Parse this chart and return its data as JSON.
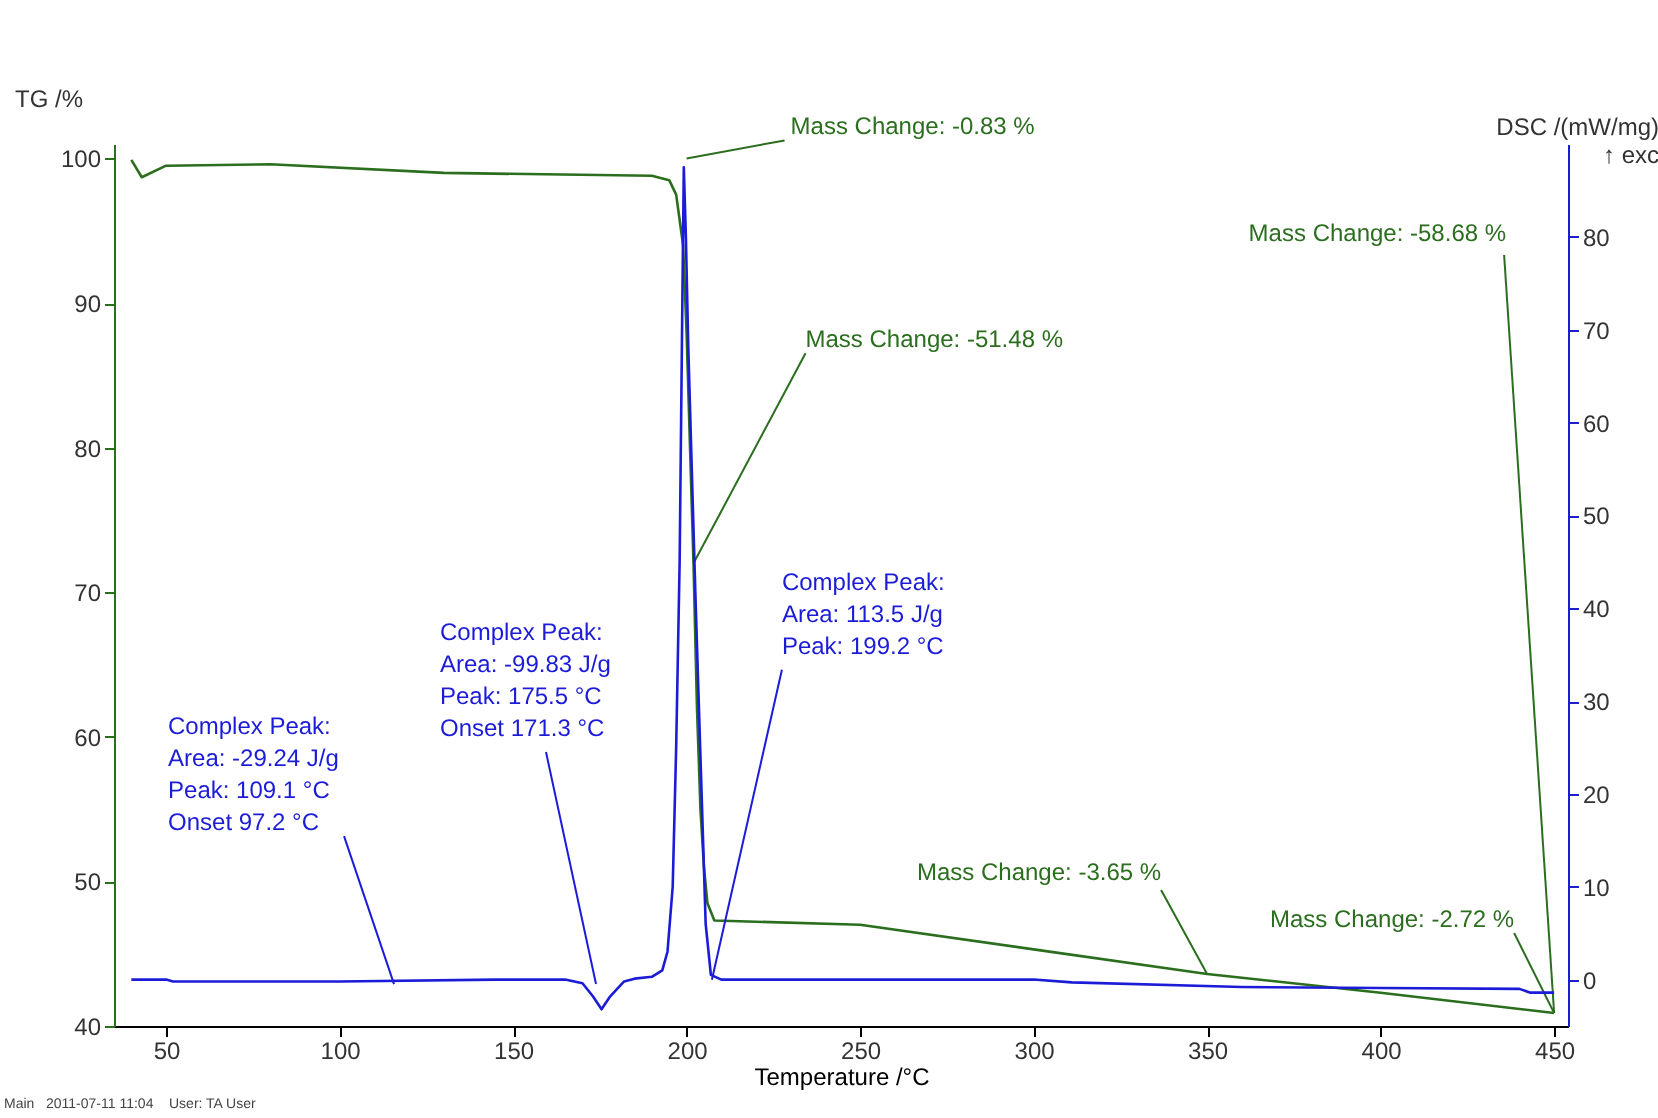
{
  "chart_data": {
    "type": "line",
    "xlabel": "Temperature /°C",
    "ylabel": "TG /%",
    "y2label": "DSC /(mW/mg)\n↑ exc",
    "xlim": [
      35,
      454
    ],
    "xticks": [
      50,
      100,
      150,
      200,
      250,
      300,
      350,
      400,
      450
    ],
    "ylim": [
      40,
      101
    ],
    "yticks": [
      40,
      50,
      60,
      70,
      80,
      90,
      100
    ],
    "y2lim": [
      -5,
      90
    ],
    "y2ticks": [
      0,
      10,
      20,
      30,
      40,
      50,
      60,
      70,
      80
    ],
    "grid": false,
    "marker": "none",
    "line_style": "solid",
    "series": [
      {
        "color": "#2a6e1e",
        "x": [
          40,
          43,
          50,
          80,
          130,
          190,
          195,
          197,
          199,
          200,
          201,
          202,
          203,
          204,
          205,
          206,
          208,
          250,
          300,
          350,
          400,
          450
        ],
        "values": [
          99.9,
          98.7,
          99.5,
          99.6,
          99.0,
          98.8,
          98.5,
          97.5,
          94,
          88,
          80,
          72,
          62,
          55,
          51,
          48.5,
          47.3,
          47.0,
          45.3,
          43.6,
          42.3,
          40.9
        ]
      },
      {
        "color": "#1c1cd8",
        "axis": "y2",
        "x": [
          40,
          50,
          52,
          100,
          145,
          165,
          170,
          173,
          175.5,
          178,
          182,
          185,
          190,
          193,
          194.5,
          196,
          197,
          198,
          198.7,
          199.2,
          199.8,
          200.5,
          201.5,
          202.5,
          203.5,
          204.5,
          205.5,
          207,
          210,
          300,
          311,
          360,
          400,
          440,
          443,
          450
        ],
        "values": [
          0,
          0,
          -0.2,
          -0.2,
          0,
          0,
          -0.4,
          -1.8,
          -3.2,
          -1.8,
          -0.2,
          0.1,
          0.3,
          1,
          3,
          10,
          25,
          45,
          70,
          87.5,
          80,
          68,
          55,
          42,
          30,
          18,
          6,
          0.5,
          0,
          0,
          -0.3,
          -0.8,
          -0.9,
          -1.0,
          -1.4,
          -1.4
        ]
      }
    ],
    "annotations": [
      {
        "text": "Mass Change: -0.83 %",
        "x": 200,
        "y": 100
      },
      {
        "text": "Mass Change: -51.48 %",
        "x": 202,
        "y": 72
      },
      {
        "text": "Mass Change: -58.68 %",
        "x": 450,
        "y": 40.9
      },
      {
        "text": "Mass Change: -3.65 %",
        "x": 350,
        "y": 43.6
      },
      {
        "text": "Mass Change: -2.72 %",
        "x": 450,
        "y": 40.9
      },
      {
        "text": "Complex Peak:\nArea:     -29.24 J/g\nPeak:   109.1 °C\nOnset    97.2 °C",
        "x": 115.7,
        "y": 42.9
      },
      {
        "text": "Complex Peak:\nArea:     -99.83 J/g\nPeak:   175.5 °C\nOnset  171.3 °C",
        "x": 173.9,
        "y": 42.9
      },
      {
        "text": "Complex Peak:\nArea:  113.5 J/g\nPeak:  199.2 °C",
        "x": 207.3,
        "y": 43.2
      },
      "Main   2011-07-11 11:04    User: TA User"
    ]
  }
}
